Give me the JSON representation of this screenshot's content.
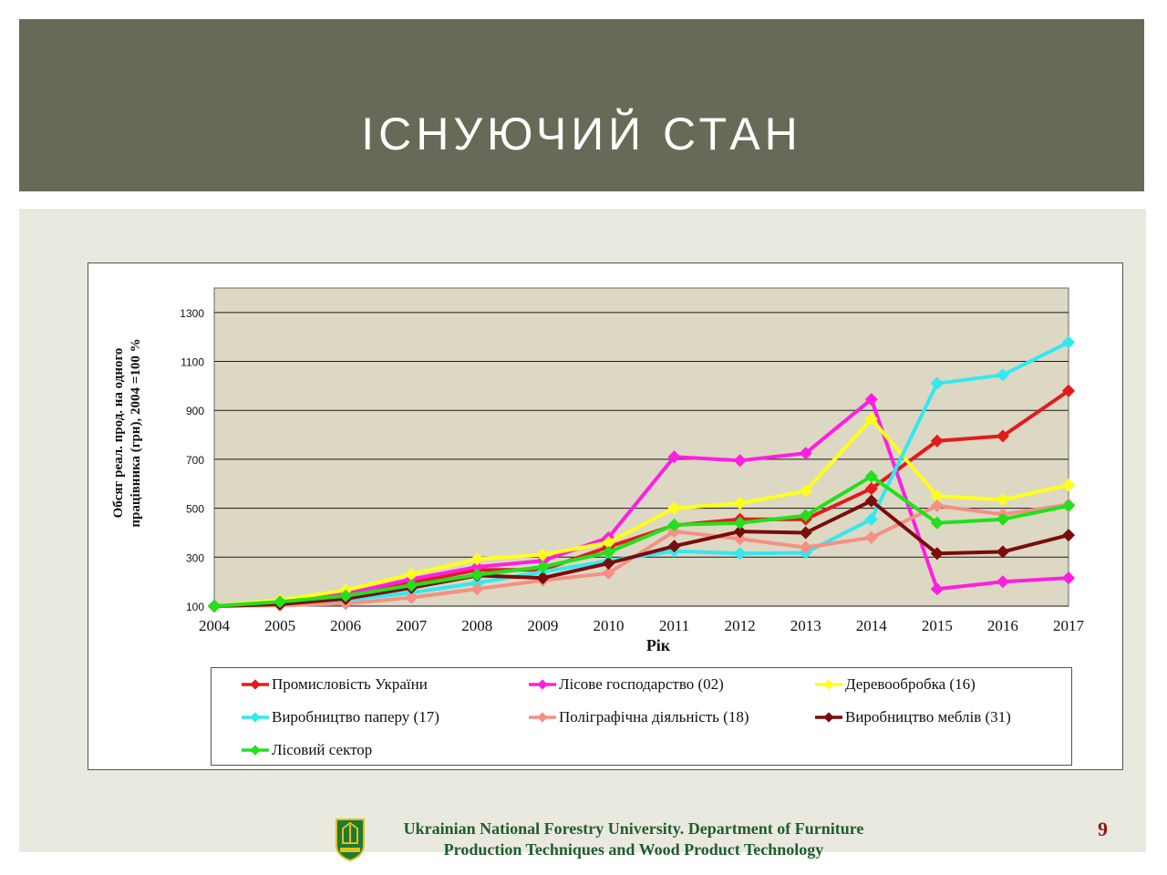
{
  "slide": {
    "title": "ІСНУЮЧИЙ СТАН",
    "page_number": "9",
    "footer": {
      "line1": "Ukrainian National Forestry University.  Department of Furniture",
      "line2": "Production Techniques and Wood Product Technology",
      "logo_icon": "university-crest-icon"
    },
    "colors": {
      "header_bg": "#676a56",
      "content_bg": "#e9e9df",
      "plot_bg": "#ddd8c3"
    }
  },
  "chart_data": {
    "type": "line",
    "xlabel": "Рік",
    "ylabel_line1": "Обсяг реал. прод. на одного",
    "ylabel_line2": "працівника (грн), 2004 =100 %",
    "categories": [
      "2004",
      "2005",
      "2006",
      "2007",
      "2008",
      "2009",
      "2010",
      "2011",
      "2012",
      "2013",
      "2014",
      "2015",
      "2016",
      "2017"
    ],
    "ylim": [
      100,
      1400
    ],
    "yticks": [
      100,
      300,
      500,
      700,
      900,
      1100,
      1300
    ],
    "grid": true,
    "legend_position": "bottom",
    "series": [
      {
        "name": "Промисловість України",
        "color": "#e31b1b",
        "values": [
          100,
          112,
          138,
          195,
          248,
          248,
          342,
          430,
          455,
          455,
          580,
          775,
          795,
          980
        ]
      },
      {
        "name": "Лісове господарство (02)",
        "color": "#ff1fe0",
        "values": [
          100,
          115,
          150,
          210,
          260,
          285,
          380,
          710,
          695,
          725,
          945,
          170,
          200,
          215
        ]
      },
      {
        "name": "Деревообробка (16)",
        "color": "#ffff1a",
        "values": [
          100,
          125,
          165,
          230,
          292,
          310,
          360,
          500,
          520,
          570,
          865,
          550,
          535,
          595
        ]
      },
      {
        "name": "Виробництво паперу (17)",
        "color": "#33e8f0",
        "values": [
          100,
          108,
          125,
          155,
          195,
          240,
          285,
          325,
          315,
          318,
          455,
          1010,
          1045,
          1178
        ]
      },
      {
        "name": "Поліграфічна діяльність (18)",
        "color": "#f59084",
        "values": [
          100,
          103,
          110,
          135,
          170,
          205,
          235,
          405,
          375,
          340,
          380,
          510,
          475,
          515
        ]
      },
      {
        "name": "Виробництво меблів (31)",
        "color": "#7a0c0c",
        "values": [
          100,
          108,
          130,
          175,
          225,
          215,
          275,
          345,
          405,
          400,
          530,
          315,
          322,
          390
        ]
      },
      {
        "name": "Лісовий сектор",
        "color": "#22e01c",
        "values": [
          100,
          118,
          142,
          185,
          228,
          260,
          320,
          432,
          440,
          470,
          630,
          440,
          455,
          510
        ]
      }
    ]
  }
}
